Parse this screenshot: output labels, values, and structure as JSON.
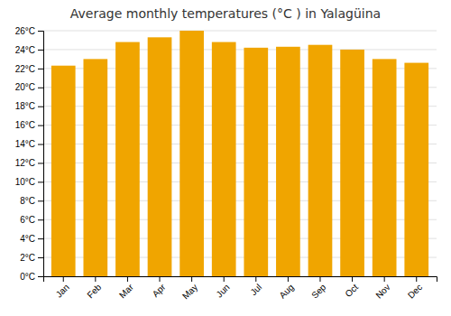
{
  "chart_data": {
    "type": "bar",
    "title": "Average monthly temperatures (°C ) in Yalagüina",
    "categories": [
      "Jan",
      "Feb",
      "Mar",
      "Apr",
      "May",
      "Jun",
      "Jul",
      "Aug",
      "Sep",
      "Oct",
      "Nov",
      "Dec"
    ],
    "values": [
      22.3,
      23.0,
      24.8,
      25.3,
      26.0,
      24.8,
      24.2,
      24.3,
      24.5,
      24.0,
      23.0,
      22.6
    ],
    "color": "#F0A500",
    "ylim": [
      0,
      26
    ],
    "yticks": [
      {
        "value": 0,
        "label": "0°C"
      },
      {
        "value": 2,
        "label": "2°C"
      },
      {
        "value": 4,
        "label": "4°C"
      },
      {
        "value": 6,
        "label": "6°C"
      },
      {
        "value": 8,
        "label": "8°C"
      },
      {
        "value": 10,
        "label": "10°C"
      },
      {
        "value": 12,
        "label": "12°C"
      },
      {
        "value": 14,
        "label": "14°C"
      },
      {
        "value": 16,
        "label": "16°C"
      },
      {
        "value": 18,
        "label": "18°C"
      },
      {
        "value": 20,
        "label": "20°C"
      },
      {
        "value": 22,
        "label": "22°C"
      },
      {
        "value": 24,
        "label": "24°C"
      },
      {
        "value": 26,
        "label": "26°C"
      }
    ],
    "grid": true
  }
}
